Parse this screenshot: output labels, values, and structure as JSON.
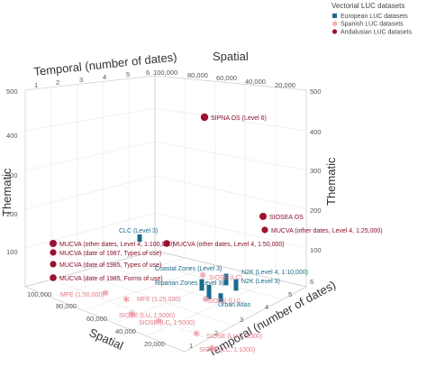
{
  "chart_data": {
    "type": "scatter",
    "legend": {
      "title": "Vectorial LUC datasets",
      "placement": "top-right",
      "entries": [
        {
          "key": "european",
          "label": "European LUC datasets",
          "color": "#1a6a8c",
          "marker": "square"
        },
        {
          "key": "spanish",
          "label": "Spanish LUC datasets",
          "color": "#f0a8b0",
          "marker": "asterisk"
        },
        {
          "key": "andalusian",
          "label": "Andalusian LUC datasets",
          "color": "#9b1230",
          "marker": "circle"
        }
      ]
    },
    "axes": {
      "spatial_title": "Spatial",
      "temporal_title": "Temporal (number of dates)",
      "thematic_title": "Thematic",
      "thematic_ticks": [
        "100",
        "200",
        "300",
        "400",
        "500"
      ],
      "temporal_top_ticks": [
        "1",
        "2",
        "3",
        "4",
        "5",
        "6"
      ],
      "spatial_back_ticks": [
        "100,000",
        "80,000",
        "60,000",
        "40,000",
        "20,000"
      ],
      "thematic_right_ticks": [
        "100",
        "200",
        "300",
        "400",
        "500"
      ],
      "spatial_front_ticks": [
        "100,000",
        "80,000",
        "60,000",
        "40,000",
        "20,000"
      ],
      "temporal_bottom_ticks": [
        "1",
        "2",
        "3",
        "4",
        "5",
        "6"
      ]
    },
    "points": [
      {
        "name": "SIPNA OS (Level 6)",
        "group": "andalusian",
        "label": "SIPNA OS (Level 6)"
      },
      {
        "name": "SIOSEA OS",
        "group": "andalusian",
        "label": "SIOSEA OS"
      },
      {
        "name": "MUCVA (other dates, Level 4, 1:25,000)",
        "group": "andalusian",
        "label": "MUCVA (other dates, Level 4, 1:25,000)"
      },
      {
        "name": "MUCVA (other dates, Level 4, 1:50,000)",
        "group": "andalusian",
        "label": "MUCVA (other dates, Level 4, 1:50,000)"
      },
      {
        "name": "MUCVA (other dates, Level 4, 1:100,000)",
        "group": "andalusian",
        "label": "MUCVA (other dates, Level 4, 1:100,000)"
      },
      {
        "name": "MUCVA (date of 1987, Types of use)",
        "group": "andalusian",
        "label": "MUCVA (date of 1987, Types of use)"
      },
      {
        "name": "MUCVA (date of 1985, Types of use)",
        "group": "andalusian",
        "label": "MUCVA (date of 1985, Types of use)"
      },
      {
        "name": "MUCVA (date of 1985, Forms of use)",
        "group": "andalusian",
        "label": "MUCVA (date of 1985, Forms of use)"
      },
      {
        "name": "CLC (Level 3)",
        "group": "european",
        "label": "CLC (Level 3)"
      },
      {
        "name": "Coastal Zones (Level 3)",
        "group": "european",
        "label": "Coastal Zones (Level 3)"
      },
      {
        "name": "Riparian Zones (Level 3)",
        "group": "european",
        "label": "Riparian Zones (Level 3)"
      },
      {
        "name": "N2K (Level 4, 1:10,000)",
        "group": "european",
        "label": "N2K (Level 4, 1:10,000)"
      },
      {
        "name": "N2K (Level 3)",
        "group": "european",
        "label": "N2K (Level 3)"
      },
      {
        "name": "Urban Atlas",
        "group": "european",
        "label": "Urban Atlas"
      },
      {
        "name": "SIOSE (LC)",
        "group": "spanish",
        "label": "SIOSE (LC)"
      },
      {
        "name": "SIOSE (LU)",
        "group": "spanish",
        "label": "SIOSE (LU)"
      },
      {
        "name": "MFE (1:50,000)",
        "group": "spanish",
        "label": "MFE (1:50,000)"
      },
      {
        "name": "MFE (1:25,000)",
        "group": "spanish",
        "label": "MFE (1:25,000)"
      },
      {
        "name": "SIOSE (LU, 1:5000)",
        "group": "spanish",
        "label": "SIOSE (LU, 1:5000)"
      },
      {
        "name": "SIOSE (LC, 1:5000)",
        "group": "spanish",
        "label": "SIOSE (LC, 1:5000)"
      },
      {
        "name": "SIOSE (LU, 1:1000)",
        "group": "spanish",
        "label": "SIOSE (LU, 1:1000)"
      },
      {
        "name": "SIOSE (LC, 1:1000)",
        "group": "spanish",
        "label": "SIOSE (LC, 1:1000)"
      }
    ]
  }
}
